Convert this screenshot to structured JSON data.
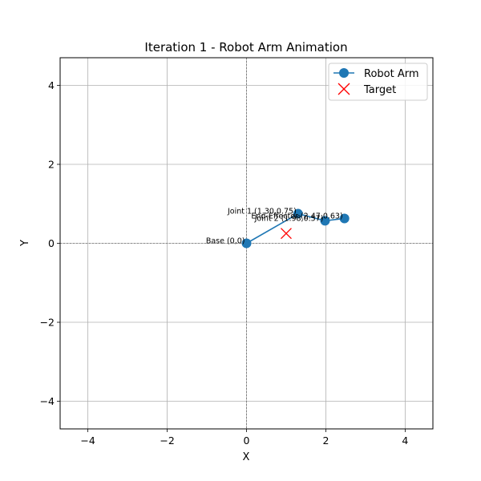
{
  "chart_data": {
    "type": "line",
    "title": "Iteration 1 - Robot Arm Animation",
    "xlabel": "X",
    "ylabel": "Y",
    "xlim": [
      -4.7,
      4.7
    ],
    "ylim": [
      -4.7,
      4.7
    ],
    "xticks": [
      -4,
      -2,
      0,
      2,
      4
    ],
    "yticks": [
      -4,
      -2,
      0,
      2,
      4
    ],
    "xtick_labels": [
      "−4",
      "−2",
      "0",
      "2",
      "4"
    ],
    "ytick_labels": [
      "−4",
      "−2",
      "0",
      "2",
      "4"
    ],
    "grid": true,
    "legend": "top-right",
    "series": [
      {
        "name": "Robot Arm",
        "marker": "circle",
        "color": "#1f77b4",
        "x": [
          0,
          1.3,
          1.98,
          2.47
        ],
        "y": [
          0,
          0.75,
          0.57,
          0.63
        ]
      },
      {
        "name": "Target",
        "marker": "x",
        "color": "#ff0000",
        "x": [
          1.0
        ],
        "y": [
          0.25
        ]
      }
    ],
    "annotations": [
      {
        "text": "Base (0,0)",
        "x": 0,
        "y": 0
      },
      {
        "text": "Joint 1 (1.30,0.75)",
        "x": 1.3,
        "y": 0.75
      },
      {
        "text": "Joint 2 (1.98,0.57)",
        "x": 1.98,
        "y": 0.57
      },
      {
        "text": "End-Effector (2.47,0.63)",
        "x": 2.47,
        "y": 0.63
      }
    ]
  }
}
